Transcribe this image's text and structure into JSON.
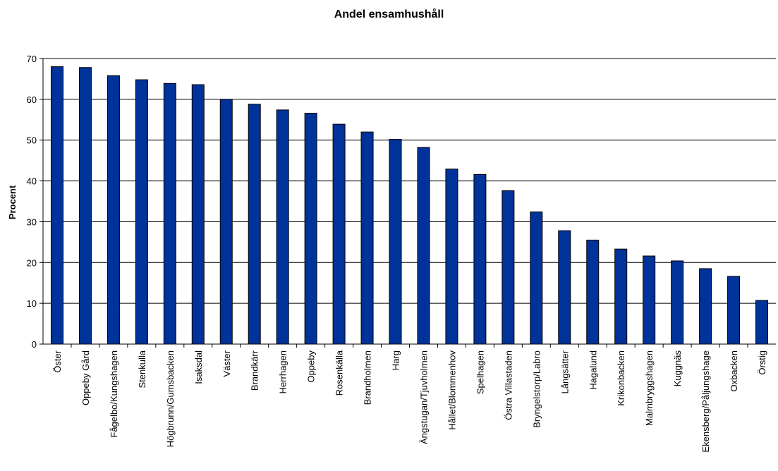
{
  "chart_data": {
    "type": "bar",
    "title": "Andel ensamhushåll",
    "xlabel": "",
    "ylabel": "Procent",
    "ylim": [
      0,
      70
    ],
    "yticks": [
      0,
      10,
      20,
      30,
      40,
      50,
      60,
      70
    ],
    "grid": true,
    "bar_color": "#003399",
    "categories": [
      "Öster",
      "Oppeby Gård",
      "Fågelbo/Kungshagen",
      "Stenkulla",
      "Högbrunn/Gumsbacken",
      "Isaksdal",
      "Väster",
      "Brandkärr",
      "Herrhagen",
      "Oppeby",
      "Rosenkälla",
      "Brandholmen",
      "Harg",
      "Ängstugan/Tjuvholmen",
      "Hållet/Blommenhov",
      "Spelhagen",
      "Östra Villastaden",
      "Bryngelstorp/Labro",
      "Långsätter",
      "Hagalund",
      "Krikonbacken",
      "Malmbryggshagen",
      "Kuggnäs",
      "Ekensberg/Påljungshage",
      "Oxbacken",
      "Örstig"
    ],
    "values": [
      68,
      67.8,
      65.8,
      64.8,
      63.9,
      63.6,
      60,
      58.8,
      57.4,
      56.6,
      53.9,
      52,
      50.2,
      48.2,
      42.9,
      41.6,
      37.6,
      32.4,
      27.8,
      25.5,
      23.3,
      21.6,
      20.4,
      18.5,
      16.6,
      10.7
    ]
  }
}
